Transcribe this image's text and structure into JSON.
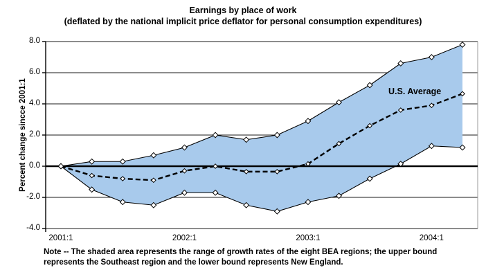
{
  "title": {
    "line1": "Earnings by place of work",
    "line2": "(deflated by the national implicit price deflator for personal consumption expenditures)"
  },
  "y_axis": {
    "title": "Percent change sincce 2001:1",
    "ticks": [
      {
        "label": "8.0",
        "value": 8
      },
      {
        "label": "6.0",
        "value": 6
      },
      {
        "label": "4.0",
        "value": 4
      },
      {
        "label": "2.0",
        "value": 2
      },
      {
        "label": "0.0",
        "value": 0
      },
      {
        "label": "-2.0",
        "value": -2
      },
      {
        "label": "-4.0",
        "value": -4
      }
    ]
  },
  "x_axis": {
    "ticks": [
      {
        "label": "2001:1",
        "index": 0
      },
      {
        "label": "2002:1",
        "index": 4
      },
      {
        "label": "2003:1",
        "index": 8
      },
      {
        "label": "2004:1",
        "index": 12
      }
    ]
  },
  "annotation": "U.S. Average",
  "note": {
    "line1": "Note -- The shaded area represents the range of growth rates of the eight BEA regions; the upper bound",
    "line2": "represents the Southeast region and the lower bound represents New England."
  },
  "colors": {
    "band_fill": "#A8CAEC",
    "line": "#000000",
    "gridline": "#1a1a1a",
    "right_border": "#9a9a9a",
    "marker_fill": "#ffffff"
  },
  "chart_data": {
    "type": "area",
    "title": "Earnings by place of work (deflated by the national implicit price deflator for personal consumption expenditures)",
    "ylabel": "Percent change sincce 2001:1",
    "ylim": [
      -4,
      8
    ],
    "grid": true,
    "categories": [
      "2001:1",
      "2001:2",
      "2001:3",
      "2001:4",
      "2002:1",
      "2002:2",
      "2002:3",
      "2002:4",
      "2003:1",
      "2003:2",
      "2003:3",
      "2003:4",
      "2004:1",
      "2004:2"
    ],
    "series": [
      {
        "name": "Upper bound (Southeast region)",
        "style": "solid",
        "values": [
          0,
          0.3,
          0.3,
          0.7,
          1.2,
          2.0,
          1.7,
          2.0,
          2.9,
          4.1,
          5.2,
          6.6,
          7.0,
          7.8
        ]
      },
      {
        "name": "U.S. Average",
        "style": "dashed",
        "values": [
          0,
          -0.6,
          -0.8,
          -0.9,
          -0.3,
          0.0,
          -0.35,
          -0.35,
          0.15,
          1.45,
          2.6,
          3.6,
          3.9,
          4.65
        ]
      },
      {
        "name": "Lower bound (New England)",
        "style": "solid",
        "values": [
          0,
          -1.5,
          -2.3,
          -2.5,
          -1.7,
          -1.7,
          -2.5,
          -2.9,
          -2.3,
          -1.9,
          -0.8,
          0.15,
          1.3,
          1.2
        ]
      }
    ]
  }
}
